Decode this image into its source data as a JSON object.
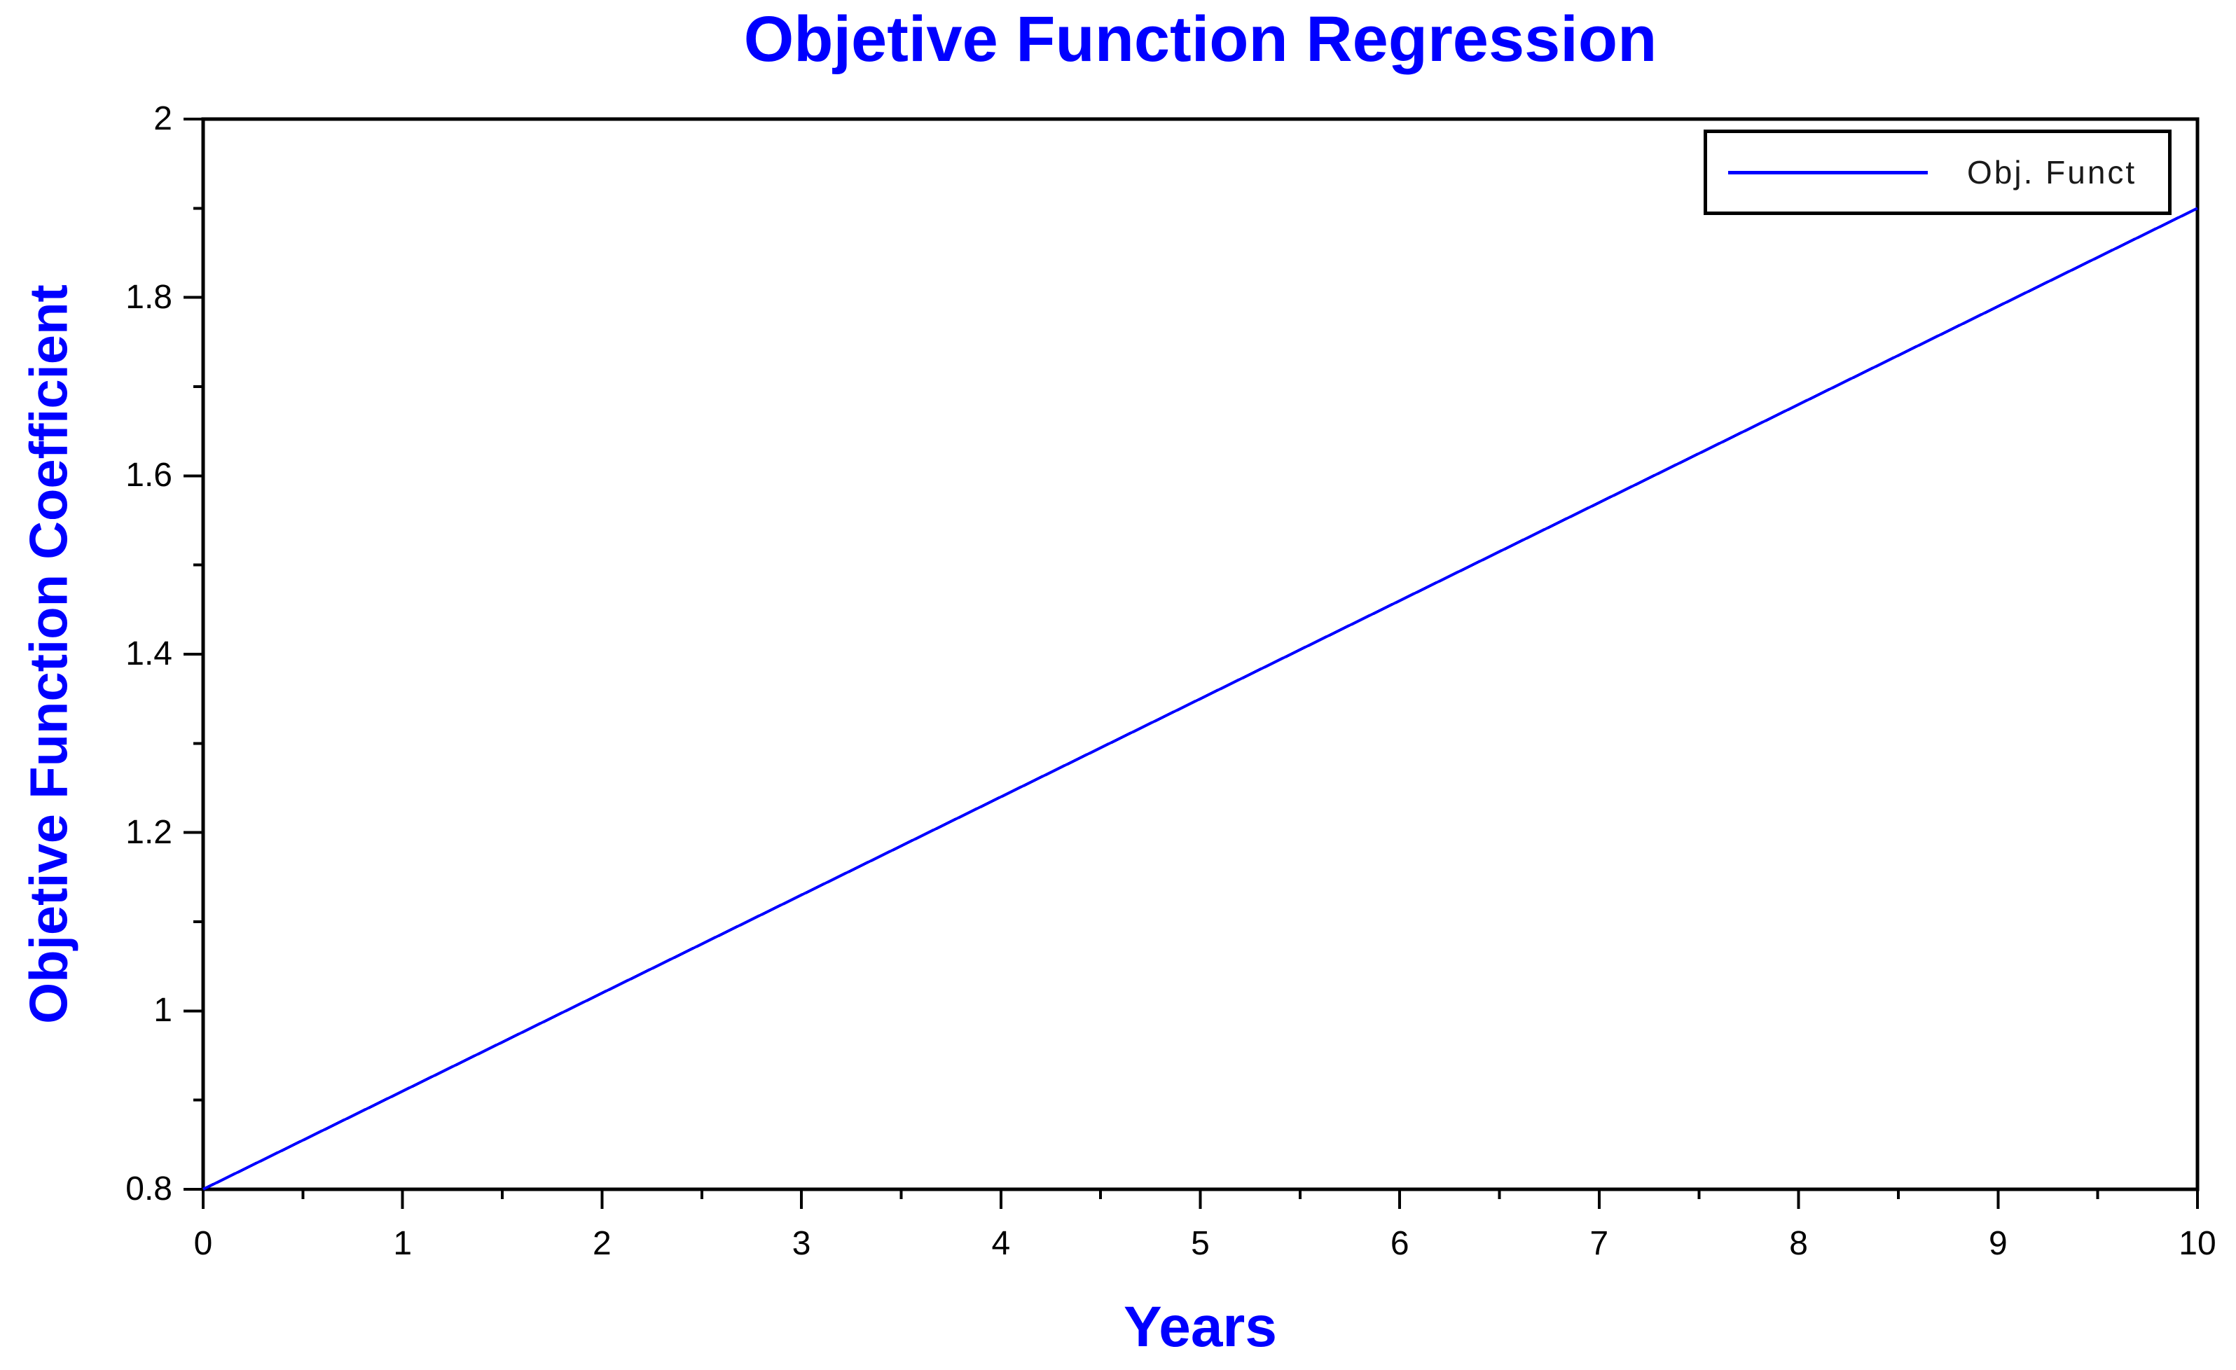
{
  "window": {
    "background": "#ffffff"
  },
  "colors": {
    "accent_blue": "#0000ff",
    "axis_black": "#000000",
    "tick_text": "#000000",
    "legend_text": "#1a1a1a"
  },
  "chart_data": {
    "type": "line",
    "title": "Objetive Function Regression",
    "xlabel": "Years",
    "ylabel": "Objetive Function Coefficient",
    "xlim": [
      0,
      10
    ],
    "ylim": [
      0.8,
      2
    ],
    "grid": false,
    "x_ticks": {
      "values": [
        0,
        1,
        2,
        3,
        4,
        5,
        6,
        7,
        8,
        9,
        10
      ],
      "labels": [
        "0",
        "1",
        "2",
        "3",
        "4",
        "5",
        "6",
        "7",
        "8",
        "9",
        "10"
      ],
      "minor_step": 0.5
    },
    "y_ticks": {
      "values": [
        0.8,
        1,
        1.2,
        1.4,
        1.6,
        1.8,
        2
      ],
      "labels": [
        "0.8",
        "1",
        "1.2",
        "1.4",
        "1.6",
        "1.8",
        "2"
      ],
      "minor_step": 0.1
    },
    "legend": {
      "position": "top-right",
      "entries": [
        {
          "label": "Obj. Funct",
          "color": "#0000ff"
        }
      ]
    },
    "series": [
      {
        "name": "Obj. Funct",
        "color": "#0000ff",
        "x": [
          0,
          10
        ],
        "y": [
          0.8,
          1.9
        ]
      }
    ]
  }
}
